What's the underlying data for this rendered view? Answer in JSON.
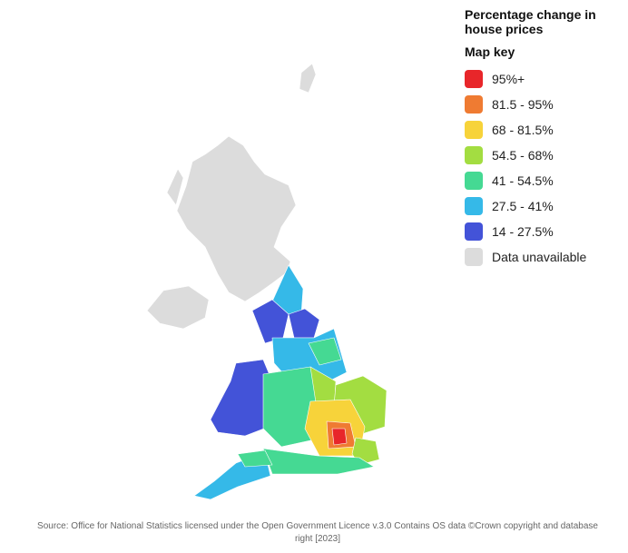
{
  "title": "Percentage change in house prices",
  "key_heading": "Map key",
  "legend": [
    {
      "label": "95%+",
      "color": "#e8262a"
    },
    {
      "label": "81.5 - 95%",
      "color": "#ef7b32"
    },
    {
      "label": "68 - 81.5%",
      "color": "#f7d33a"
    },
    {
      "label": "54.5 - 68%",
      "color": "#a3dd41"
    },
    {
      "label": "41 - 54.5%",
      "color": "#45d993"
    },
    {
      "label": "27.5 - 41%",
      "color": "#35b9e8"
    },
    {
      "label": "14 - 27.5%",
      "color": "#4353d8"
    },
    {
      "label": "Data unavailable",
      "color": "#dcdcdc"
    }
  ],
  "source": "Source: Office for National Statistics licensed under the Open Government Licence v.3.0 Contains OS data ©Crown copyright and database right [2023]"
}
